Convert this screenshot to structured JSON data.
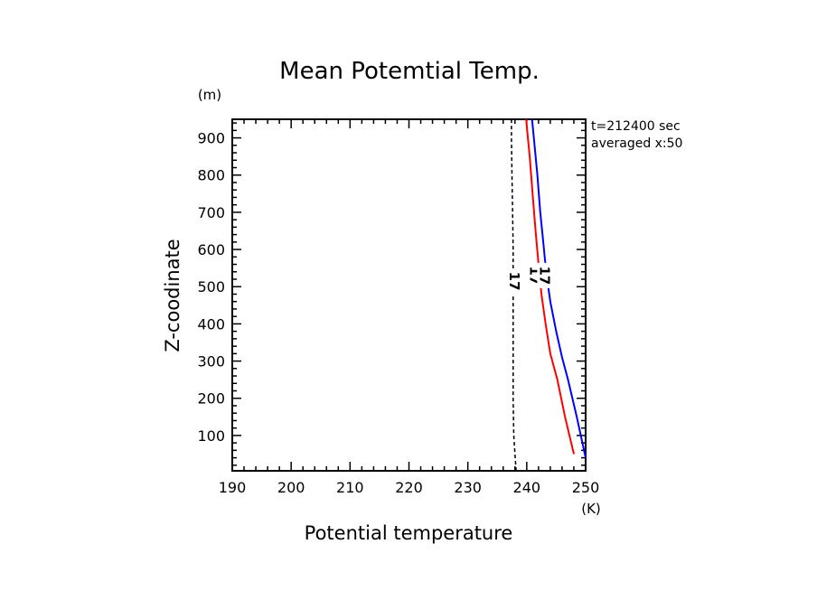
{
  "chart_data": {
    "type": "line",
    "title": "Mean Potemtial Temp.",
    "xlabel": "Potential temperature",
    "ylabel": "Z-coodinate",
    "x_unit": "(K)",
    "y_unit": "(m)",
    "xlim": [
      190,
      250
    ],
    "ylim": [
      5,
      950
    ],
    "x_ticks": [
      "190",
      "200",
      "210",
      "220",
      "230",
      "240",
      "250"
    ],
    "y_ticks": [
      "100",
      "200",
      "300",
      "400",
      "500",
      "600",
      "700",
      "800",
      "900"
    ],
    "annotations": [
      "t=212400 sec",
      "averaged  x:50"
    ],
    "series": [
      {
        "color": "#000000",
        "style": "dashed",
        "label": "17",
        "label_at": [
          237.9,
          515
        ],
        "points": [
          [
            238.2,
            5
          ],
          [
            238.0,
            50
          ],
          [
            237.8,
            100
          ],
          [
            237.7,
            200
          ],
          [
            237.7,
            300
          ],
          [
            237.7,
            400
          ],
          [
            237.7,
            500
          ],
          [
            237.7,
            600
          ],
          [
            237.6,
            700
          ],
          [
            237.5,
            800
          ],
          [
            237.4,
            900
          ],
          [
            237.4,
            950
          ]
        ]
      },
      {
        "color": "#ff0000",
        "style": "solid",
        "label": "17",
        "label_at": [
          241.3,
          530
        ],
        "points": [
          [
            248.0,
            50
          ],
          [
            246.5,
            150
          ],
          [
            245.2,
            250
          ],
          [
            244.0,
            320
          ],
          [
            243.2,
            400
          ],
          [
            242.5,
            480
          ],
          [
            242.0,
            560
          ],
          [
            241.5,
            650
          ],
          [
            241.0,
            750
          ],
          [
            240.5,
            850
          ],
          [
            240.2,
            900
          ],
          [
            239.9,
            950
          ]
        ]
      },
      {
        "color": "#0000ff",
        "style": "solid",
        "label": "17",
        "label_at": [
          243.0,
          530
        ],
        "points": [
          [
            250.0,
            40
          ],
          [
            248.5,
            150
          ],
          [
            247.0,
            250
          ],
          [
            246.0,
            310
          ],
          [
            245.0,
            380
          ],
          [
            244.0,
            460
          ],
          [
            243.3,
            540
          ],
          [
            242.8,
            620
          ],
          [
            242.3,
            700
          ],
          [
            241.8,
            800
          ],
          [
            241.2,
            900
          ],
          [
            240.9,
            950
          ]
        ]
      }
    ]
  }
}
